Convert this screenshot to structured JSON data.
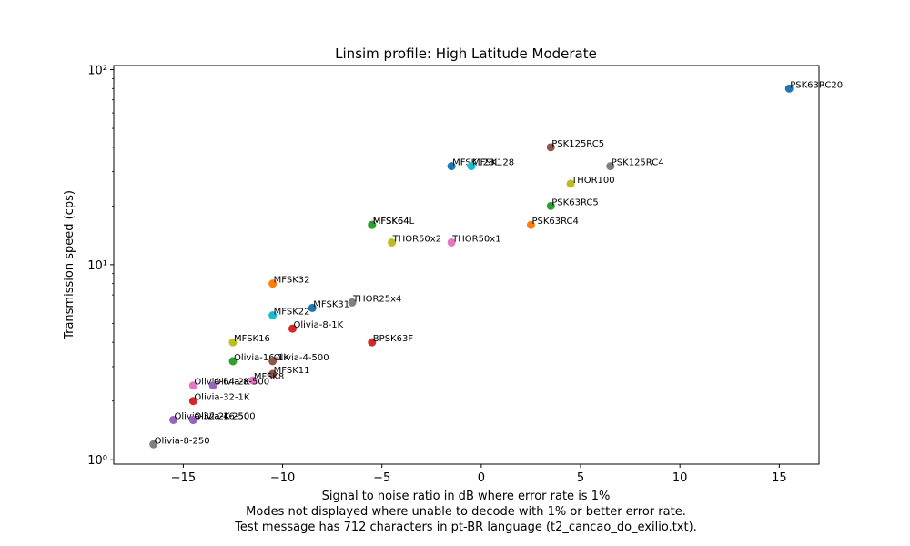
{
  "chart_data": {
    "type": "scatter",
    "title": "Linsim profile: High Latitude Moderate",
    "xlabel": "Signal to noise ratio in dB where error rate is 1%",
    "ylabel": "Transmission speed (cps)",
    "caption": [
      "Modes not displayed where unable to decode with 1% or better error rate.",
      "Test message has 712 characters in pt-BR language (t2_cancao_do_exilio.txt)."
    ],
    "x_scale": "linear",
    "y_scale": "log",
    "xlim": [
      -18.5,
      17.0
    ],
    "ylim": [
      0.95,
      105
    ],
    "x_ticks": [
      -15,
      -10,
      -5,
      0,
      5,
      10,
      15
    ],
    "x_tick_labels": [
      "−15",
      "−10",
      "−5",
      "0",
      "5",
      "10",
      "15"
    ],
    "y_ticks": [
      1,
      10,
      100
    ],
    "y_tick_labels": [
      "10⁰",
      "10¹",
      "10²"
    ],
    "grid": false,
    "legend": "none",
    "points": [
      {
        "label": "PSK63RC20",
        "x": 15.5,
        "y": 80,
        "color": "#1f77b4"
      },
      {
        "label": "PSK125RC5",
        "x": 3.5,
        "y": 40,
        "color": "#8c564b"
      },
      {
        "label": "PSK125RC4",
        "x": 6.5,
        "y": 32,
        "color": "#7f7f7f"
      },
      {
        "label": "MFSK128L",
        "x": -1.5,
        "y": 32,
        "color": "#1f77b4"
      },
      {
        "label": "MFSK128",
        "x": -0.5,
        "y": 32,
        "color": "#17becf"
      },
      {
        "label": "THOR100",
        "x": 4.5,
        "y": 26,
        "color": "#bcbd22"
      },
      {
        "label": "PSK63RC5",
        "x": 3.5,
        "y": 20,
        "color": "#2ca02c"
      },
      {
        "label": "MFSK64L",
        "x": -5.5,
        "y": 16,
        "color": "#7f7f7f"
      },
      {
        "label": "MFSK64",
        "x": -5.5,
        "y": 16,
        "color": "#2ca02c"
      },
      {
        "label": "PSK63RC4",
        "x": 2.5,
        "y": 16,
        "color": "#ff7f0e"
      },
      {
        "label": "THOR50x2",
        "x": -4.5,
        "y": 13,
        "color": "#bcbd22"
      },
      {
        "label": "THOR50x1",
        "x": -1.5,
        "y": 13,
        "color": "#e377c2"
      },
      {
        "label": "MFSK32",
        "x": -10.5,
        "y": 8,
        "color": "#ff7f0e"
      },
      {
        "label": "THOR25x4",
        "x": -6.5,
        "y": 6.4,
        "color": "#7f7f7f"
      },
      {
        "label": "MFSK31",
        "x": -8.5,
        "y": 6,
        "color": "#1f77b4"
      },
      {
        "label": "MFSK22",
        "x": -10.5,
        "y": 5.5,
        "color": "#17becf"
      },
      {
        "label": "Olivia-8-1K",
        "x": -9.5,
        "y": 4.7,
        "color": "#d62728"
      },
      {
        "label": "MFSK16",
        "x": -12.5,
        "y": 4,
        "color": "#bcbd22"
      },
      {
        "label": "BPSK63F",
        "x": -5.5,
        "y": 4,
        "color": "#d62728"
      },
      {
        "label": "Olivia-16-1K",
        "x": -12.5,
        "y": 3.2,
        "color": "#2ca02c"
      },
      {
        "label": "Olivia-4-500",
        "x": -10.5,
        "y": 3.2,
        "color": "#8c564b"
      },
      {
        "label": "MFSK11",
        "x": -10.5,
        "y": 2.75,
        "color": "#8c564b"
      },
      {
        "label": "MFSK8",
        "x": -11.5,
        "y": 2.55,
        "color": "#e377c2"
      },
      {
        "label": "Olivia-64-2K",
        "x": -14.5,
        "y": 2.4,
        "color": "#e377c2"
      },
      {
        "label": "Olivia-8-500",
        "x": -13.5,
        "y": 2.4,
        "color": "#9467bd"
      },
      {
        "label": "Olivia-32-1K",
        "x": -14.5,
        "y": 2,
        "color": "#d62728"
      },
      {
        "label": "Olivia-32-2K",
        "x": -15.5,
        "y": 1.6,
        "color": "#9467bd"
      },
      {
        "label": "Olivia-16-500",
        "x": -14.5,
        "y": 1.6,
        "color": "#9467bd"
      },
      {
        "label": "Olivia-4-250",
        "x": -14.5,
        "y": 1.6,
        "color": "#9467bd"
      },
      {
        "label": "Olivia-8-250",
        "x": -16.5,
        "y": 1.2,
        "color": "#7f7f7f"
      }
    ]
  }
}
